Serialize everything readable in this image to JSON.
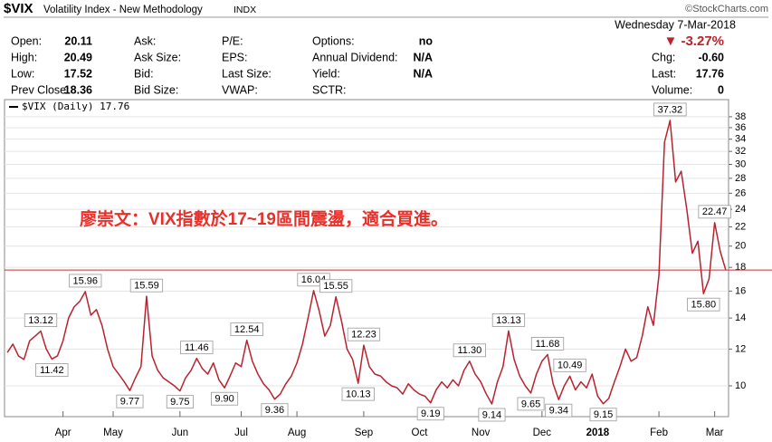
{
  "header": {
    "symbol": "$VIX",
    "name": "Volatility Index - New Methodology",
    "exchange": "INDX",
    "source": "©StockCharts.com",
    "date": "Wednesday  7-Mar-2018",
    "change_pct": "▼ -3.27%",
    "right_rows": [
      [
        "Chg:",
        "-0.60"
      ],
      [
        "Last:",
        "17.76"
      ],
      [
        "Volume:",
        "0"
      ]
    ]
  },
  "quote_table": {
    "rows": [
      [
        "Open:",
        "20.11",
        "Ask:",
        "P/E:",
        "Options:",
        "no"
      ],
      [
        "High:",
        "20.49",
        "Ask Size:",
        "EPS:",
        "Annual Dividend:",
        "N/A"
      ],
      [
        "Low:",
        "17.52",
        "Bid:",
        "Last Size:",
        "Yield:",
        "N/A"
      ],
      [
        "Prev Close:",
        "18.36",
        "Bid Size:",
        "VWAP:",
        "SCTR:",
        null
      ]
    ]
  },
  "chart_data": {
    "type": "line",
    "annotation": "廖崇文：VIX指數於17~19區間震盪，適合買進。",
    "log_scale": true,
    "grid": true,
    "ylim": [
      8.66,
      41
    ],
    "yticks": [
      10,
      12,
      14,
      16,
      18,
      20,
      22,
      24,
      26,
      28,
      30,
      32,
      34,
      36,
      38
    ],
    "categories": [
      null,
      null,
      null,
      null,
      null,
      null,
      null,
      null,
      null,
      null,
      "Apr",
      null,
      null,
      null,
      null,
      null,
      null,
      null,
      null,
      "May",
      null,
      null,
      null,
      null,
      null,
      null,
      null,
      null,
      null,
      null,
      null,
      "Jun",
      null,
      null,
      null,
      null,
      null,
      null,
      null,
      null,
      null,
      null,
      "Jul",
      null,
      null,
      null,
      null,
      null,
      null,
      null,
      null,
      null,
      "Aug",
      null,
      null,
      null,
      null,
      null,
      null,
      null,
      null,
      null,
      null,
      null,
      "Sep",
      null,
      null,
      null,
      null,
      null,
      null,
      null,
      null,
      null,
      "Oct",
      null,
      null,
      null,
      null,
      null,
      null,
      null,
      null,
      null,
      null,
      "Nov",
      null,
      null,
      null,
      null,
      null,
      null,
      null,
      null,
      null,
      null,
      "Dec",
      null,
      null,
      null,
      null,
      null,
      null,
      null,
      null,
      null,
      "2018",
      null,
      null,
      null,
      null,
      null,
      null,
      null,
      null,
      null,
      null,
      "Feb",
      null,
      null,
      null,
      null,
      null,
      null,
      null,
      null,
      null,
      "Mar",
      null,
      null
    ],
    "series": [
      {
        "name": "$VIX (Daily) 17.76",
        "color": "#b8232f",
        "values": [
          11.8,
          12.3,
          11.6,
          11.4,
          12.5,
          12.8,
          13.12,
          12.0,
          11.42,
          11.6,
          12.5,
          14.0,
          14.8,
          15.2,
          15.96,
          14.2,
          14.6,
          13.5,
          12.0,
          11.0,
          10.6,
          10.2,
          9.77,
          10.4,
          11.0,
          15.59,
          11.6,
          10.8,
          10.4,
          10.2,
          10.0,
          9.75,
          10.4,
          10.8,
          11.46,
          10.9,
          10.6,
          11.2,
          10.3,
          9.9,
          10.5,
          11.2,
          11.0,
          12.54,
          11.3,
          10.6,
          10.1,
          9.8,
          9.36,
          9.6,
          10.1,
          10.5,
          11.2,
          12.3,
          14.0,
          16.04,
          14.5,
          12.8,
          13.5,
          15.55,
          13.8,
          12.0,
          11.4,
          10.13,
          12.23,
          11.0,
          10.6,
          10.5,
          10.2,
          10.0,
          9.9,
          9.6,
          10.1,
          9.8,
          9.6,
          9.5,
          9.19,
          9.8,
          10.2,
          9.9,
          10.3,
          10.0,
          10.8,
          11.3,
          10.6,
          10.2,
          9.6,
          9.14,
          10.2,
          11.0,
          13.13,
          11.4,
          10.5,
          10.0,
          9.65,
          10.6,
          11.3,
          11.68,
          10.1,
          9.34,
          10.0,
          10.49,
          9.8,
          10.2,
          9.9,
          10.6,
          9.5,
          9.15,
          9.4,
          10.2,
          11.0,
          12.0,
          11.3,
          11.5,
          12.8,
          14.8,
          13.5,
          17.3,
          33.5,
          37.32,
          27.5,
          29.0,
          24.0,
          19.3,
          20.5,
          15.8,
          17.0,
          22.47,
          19.5,
          17.76
        ],
        "value_labels": [
          null,
          null,
          null,
          null,
          null,
          null,
          "13.12",
          null,
          "11.42",
          null,
          null,
          null,
          null,
          null,
          "15.96",
          null,
          null,
          null,
          null,
          null,
          null,
          null,
          "9.77",
          null,
          null,
          "15.59",
          null,
          null,
          null,
          null,
          null,
          "9.75",
          null,
          null,
          "11.46",
          null,
          null,
          null,
          null,
          "9.90",
          null,
          null,
          null,
          "12.54",
          null,
          null,
          null,
          null,
          "9.36",
          null,
          null,
          null,
          null,
          null,
          null,
          "16.04",
          null,
          null,
          null,
          "15.55",
          null,
          null,
          null,
          "10.13",
          "12.23",
          null,
          null,
          null,
          null,
          null,
          null,
          null,
          null,
          null,
          null,
          null,
          "9.19",
          null,
          null,
          null,
          null,
          null,
          null,
          "11.30",
          null,
          null,
          null,
          "9.14",
          null,
          null,
          "13.13",
          null,
          null,
          null,
          "9.65",
          null,
          null,
          "11.68",
          null,
          "9.34",
          null,
          "10.49",
          null,
          null,
          null,
          null,
          null,
          "9.15",
          null,
          null,
          null,
          null,
          null,
          null,
          null,
          null,
          null,
          null,
          null,
          "37.32",
          null,
          null,
          null,
          null,
          null,
          "15.80",
          null,
          "22.47",
          null,
          null
        ]
      }
    ]
  }
}
